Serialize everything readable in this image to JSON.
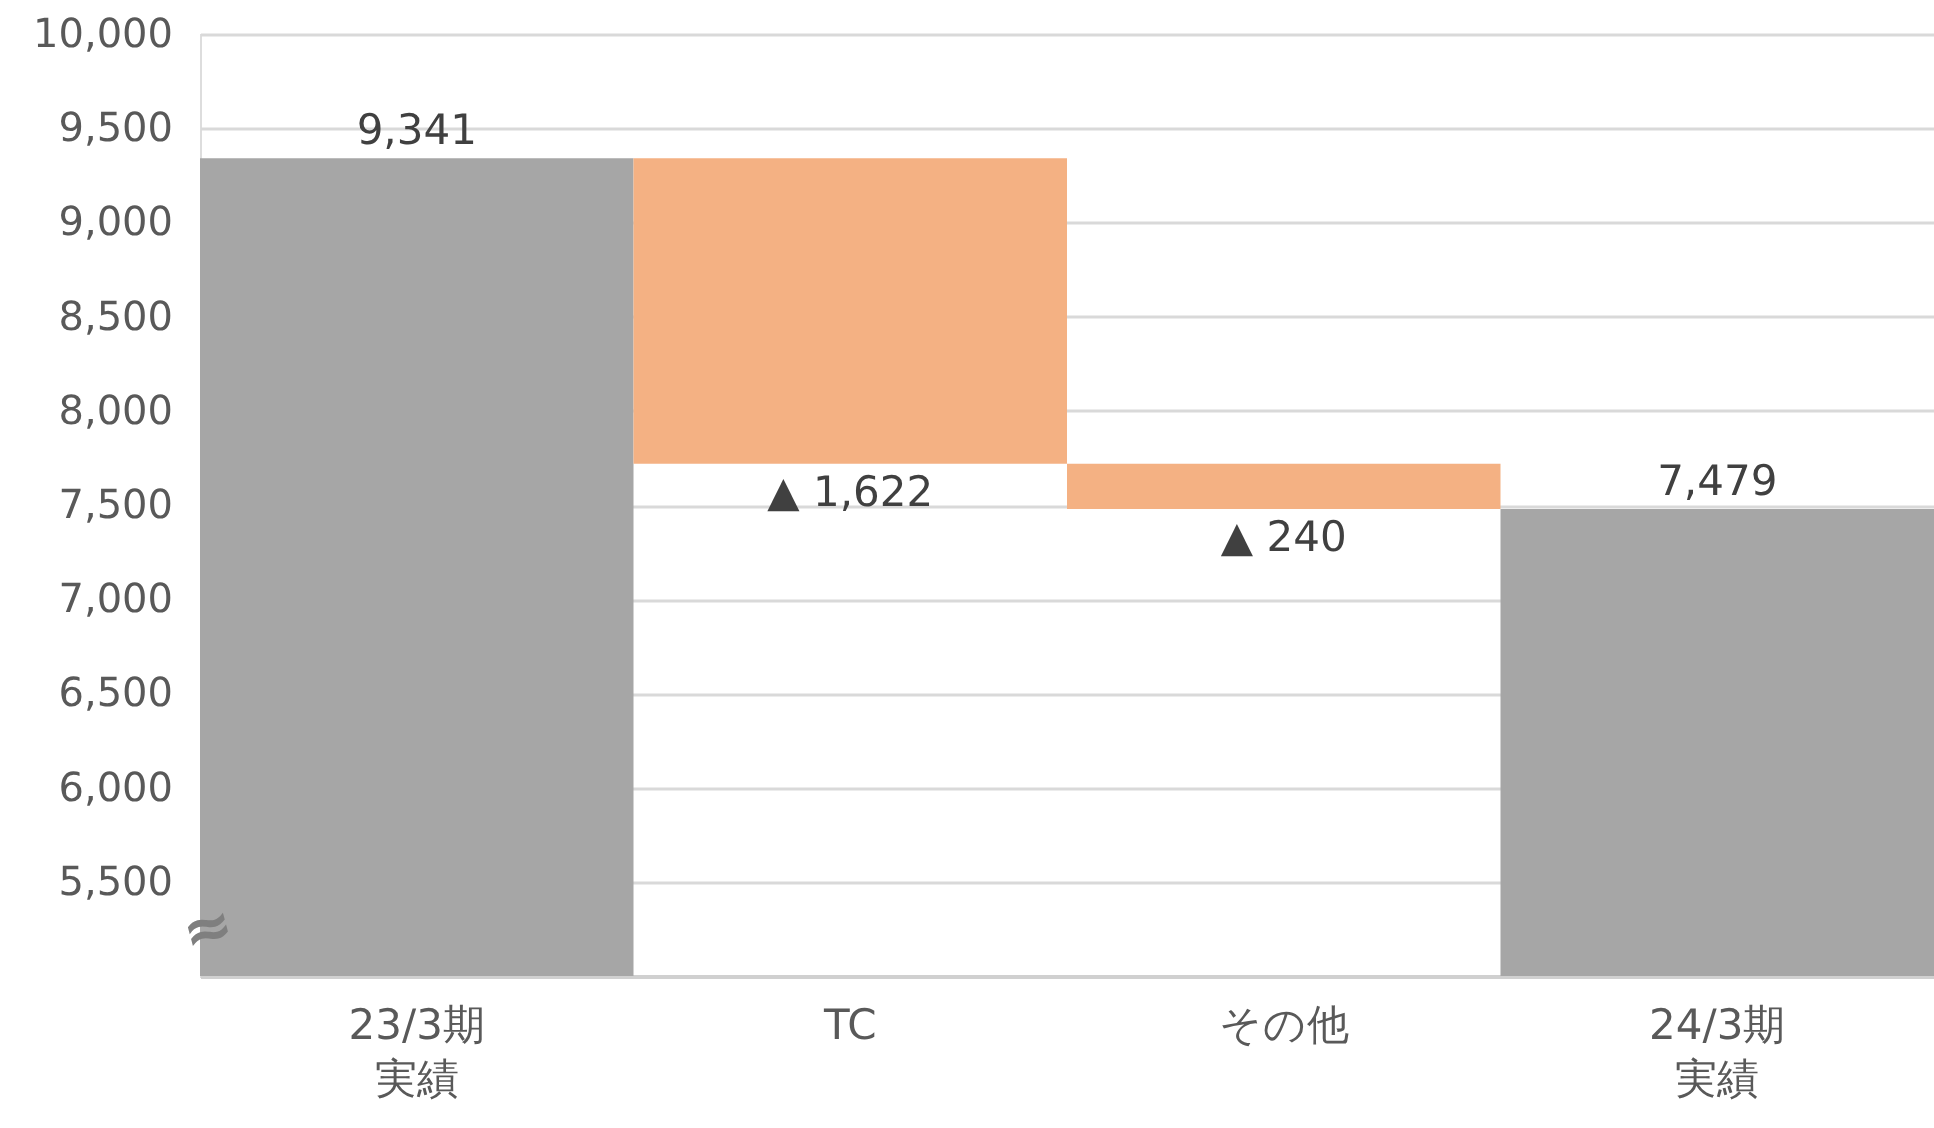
{
  "chart_data": {
    "type": "bar",
    "categories": [
      "23/3期実績",
      "TC",
      "その他",
      "24/3期実績"
    ],
    "values": [
      9341,
      -1622,
      -240,
      7479
    ],
    "base": [
      null,
      9341,
      7719,
      null
    ],
    "colors": [
      "#a6a6a6",
      "#f4b183",
      "#f4b183",
      "#a6a6a6"
    ],
    "value_labels": [
      "9,341",
      "▲ 1,622",
      "▲ 240",
      "7,479"
    ],
    "ylim": [
      5000,
      10000
    ],
    "yticks": [
      {
        "value": 5500,
        "label": "5,500"
      },
      {
        "value": 6000,
        "label": "6,000"
      },
      {
        "value": 6500,
        "label": "6,500"
      },
      {
        "value": 7000,
        "label": "7,000"
      },
      {
        "value": 7500,
        "label": "7,500"
      },
      {
        "value": 8000,
        "label": "8,000"
      },
      {
        "value": 8500,
        "label": "8,500"
      },
      {
        "value": 9000,
        "label": "9,000"
      },
      {
        "value": 9500,
        "label": "9,500"
      },
      {
        "value": 10000,
        "label": "10,000"
      }
    ],
    "grid": "y",
    "annotations": [
      "≈"
    ]
  }
}
